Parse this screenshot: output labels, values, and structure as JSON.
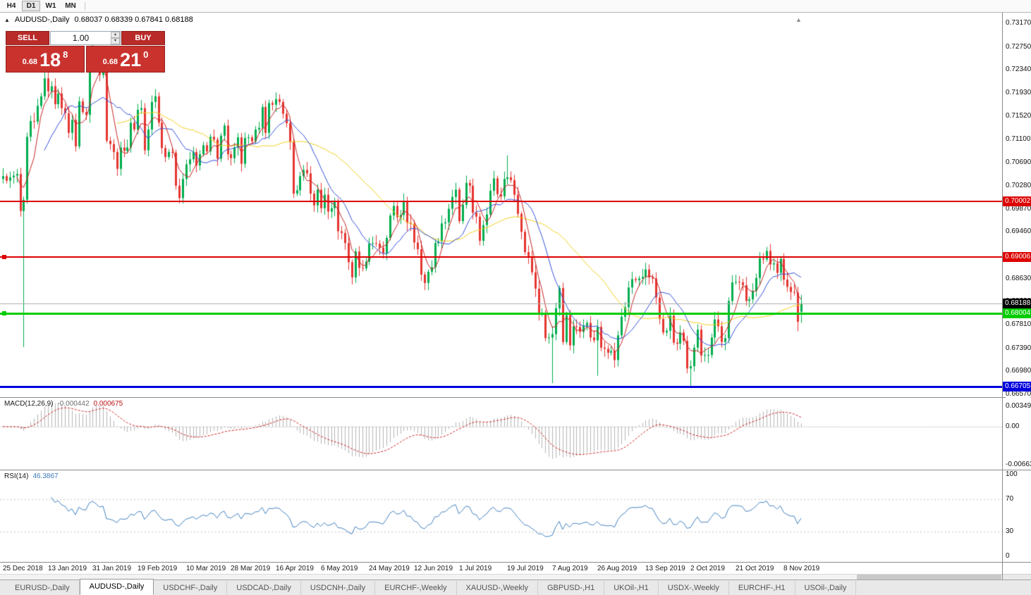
{
  "toolbar": {
    "timeframes": [
      {
        "label": "H4",
        "active": false
      },
      {
        "label": "D1",
        "active": true
      },
      {
        "label": "W1",
        "active": false
      },
      {
        "label": "MN",
        "active": false
      }
    ]
  },
  "chart": {
    "title_symbol": "AUDUSD-,Daily",
    "title_ohlc": "0.68037 0.68339 0.67841 0.68188"
  },
  "trade_panel": {
    "sell_label": "SELL",
    "buy_label": "BUY",
    "volume": "1.00",
    "sell_price": {
      "prefix": "0.68",
      "big": "18",
      "sup": "8"
    },
    "buy_price": {
      "prefix": "0.68",
      "big": "21",
      "sup": "0"
    }
  },
  "chart_data": {
    "type": "candlestick",
    "symbol": "AUDUSD-",
    "timeframe": "Daily",
    "price_max_visible": 0.7317,
    "price_min_visible": 0.6657,
    "y_ticks": [
      "0.73170",
      "0.72750",
      "0.72340",
      "0.71930",
      "0.71520",
      "0.71100",
      "0.70690",
      "0.70280",
      "0.69870",
      "0.69460",
      "0.69040",
      "0.68630",
      "0.68220",
      "0.67810",
      "0.67390",
      "0.66980",
      "0.66570"
    ],
    "x_labels": [
      {
        "label": "25 Dec 2018",
        "bar": 0
      },
      {
        "label": "13 Jan 2019",
        "bar": 13
      },
      {
        "label": "31 Jan 2019",
        "bar": 26
      },
      {
        "label": "19 Feb 2019",
        "bar": 39
      },
      {
        "label": "10 Mar 2019",
        "bar": 53
      },
      {
        "label": "28 Mar 2019",
        "bar": 66
      },
      {
        "label": "16 Apr 2019",
        "bar": 79
      },
      {
        "label": "6 May 2019",
        "bar": 92
      },
      {
        "label": "24 May 2019",
        "bar": 106
      },
      {
        "label": "12 Jun 2019",
        "bar": 119
      },
      {
        "label": "1 Jul 2019",
        "bar": 132
      },
      {
        "label": "19 Jul 2019",
        "bar": 146
      },
      {
        "label": "7 Aug 2019",
        "bar": 159
      },
      {
        "label": "26 Aug 2019",
        "bar": 172
      },
      {
        "label": "13 Sep 2019",
        "bar": 186
      },
      {
        "label": "2 Oct 2019",
        "bar": 199
      },
      {
        "label": "21 Oct 2019",
        "bar": 212
      },
      {
        "label": "8 Nov 2019",
        "bar": 226
      }
    ],
    "levels": [
      {
        "price": 0.70002,
        "label": "0.70002",
        "color": "#dd0000",
        "thickness": 2,
        "handle": false
      },
      {
        "price": 0.69006,
        "label": "0.69006",
        "color": "#dd0000",
        "thickness": 2,
        "handle": true
      },
      {
        "price": 0.68004,
        "label": "0.68004",
        "color": "#00cc00",
        "thickness": 3,
        "handle": true
      },
      {
        "price": 0.66705,
        "label": "0.66705",
        "color": "#0000dd",
        "thickness": 3,
        "handle": false
      }
    ],
    "bid_line": {
      "price": 0.68188,
      "label": "0.68188",
      "color": "#000000"
    },
    "first_open": 0.704,
    "closes": [
      0.7045,
      0.7037,
      0.7043,
      0.7046,
      0.7049,
      0.6983,
      0.7003,
      0.7115,
      0.7143,
      0.7142,
      0.717,
      0.7187,
      0.7219,
      0.7196,
      0.7205,
      0.7173,
      0.7192,
      0.7166,
      0.7157,
      0.7122,
      0.7145,
      0.7098,
      0.7178,
      0.7159,
      0.7154,
      0.7245,
      0.7271,
      0.7251,
      0.7225,
      0.7236,
      0.7108,
      0.7102,
      0.7088,
      0.7058,
      0.7096,
      0.709,
      0.7096,
      0.714,
      0.7128,
      0.7163,
      0.7166,
      0.7091,
      0.7128,
      0.7177,
      0.7187,
      0.714,
      0.7095,
      0.7079,
      0.7088,
      0.7087,
      0.7028,
      0.7006,
      0.704,
      0.7066,
      0.7075,
      0.7088,
      0.7064,
      0.7084,
      0.71,
      0.7089,
      0.7115,
      0.711,
      0.7076,
      0.7117,
      0.7135,
      0.7084,
      0.7077,
      0.7096,
      0.7114,
      0.7067,
      0.7113,
      0.7114,
      0.7107,
      0.7128,
      0.7131,
      0.7168,
      0.7122,
      0.7175,
      0.7172,
      0.7182,
      0.7177,
      0.7156,
      0.7139,
      0.7106,
      0.7014,
      0.702,
      0.7045,
      0.7056,
      0.705,
      0.7014,
      0.6993,
      0.7021,
      0.6988,
      0.7012,
      0.6982,
      0.6988,
      0.7001,
      0.6947,
      0.6944,
      0.6926,
      0.6892,
      0.6865,
      0.6911,
      0.6882,
      0.6881,
      0.6893,
      0.6925,
      0.6926,
      0.6925,
      0.6918,
      0.6908,
      0.6935,
      0.6975,
      0.6992,
      0.6972,
      0.6976,
      0.7,
      0.6962,
      0.696,
      0.6927,
      0.6915,
      0.687,
      0.6855,
      0.6875,
      0.6883,
      0.6926,
      0.6929,
      0.6961,
      0.6963,
      0.6987,
      0.7008,
      0.7021,
      0.6965,
      0.6994,
      0.7033,
      0.7028,
      0.698,
      0.6973,
      0.693,
      0.6958,
      0.6977,
      0.7019,
      0.7041,
      0.7013,
      0.7009,
      0.704,
      0.7043,
      0.7038,
      0.7012,
      0.6978,
      0.6946,
      0.691,
      0.6902,
      0.6874,
      0.6845,
      0.68,
      0.68,
      0.6757,
      0.6758,
      0.6764,
      0.681,
      0.6846,
      0.675,
      0.6798,
      0.6744,
      0.6778,
      0.6777,
      0.6768,
      0.6779,
      0.6784,
      0.6758,
      0.6753,
      0.6777,
      0.674,
      0.6738,
      0.6731,
      0.6734,
      0.6718,
      0.6762,
      0.6795,
      0.6812,
      0.6847,
      0.6862,
      0.686,
      0.6863,
      0.6866,
      0.6879,
      0.6865,
      0.6863,
      0.6829,
      0.6791,
      0.6767,
      0.677,
      0.6797,
      0.6749,
      0.6747,
      0.6767,
      0.6752,
      0.6703,
      0.6707,
      0.674,
      0.6772,
      0.6726,
      0.6727,
      0.6727,
      0.6758,
      0.679,
      0.6778,
      0.675,
      0.6757,
      0.6823,
      0.6856,
      0.6857,
      0.6856,
      0.6851,
      0.6823,
      0.6826,
      0.6841,
      0.6864,
      0.6899,
      0.6897,
      0.6912,
      0.6888,
      0.689,
      0.6873,
      0.6898,
      0.6861,
      0.6848,
      0.6839,
      0.6838,
      0.6786,
      0.68188
    ],
    "low_overrides": {
      "6": 0.6741,
      "159": 0.6677,
      "172": 0.669,
      "199": 0.667,
      "230": 0.6769
    },
    "high_overrides": {
      "26": 0.729,
      "146": 0.7082
    },
    "last_bar": {
      "open": 0.68037,
      "high": 0.68339,
      "low": 0.67841,
      "close": 0.68188
    },
    "moving_averages": [
      {
        "period": 34,
        "color": "#f0d01c"
      },
      {
        "period": 13,
        "color": "#3050d8"
      },
      {
        "period": 5,
        "color": "#c62323"
      }
    ],
    "candle_colors": {
      "up": "#00ad4e",
      "down": "#e43530"
    },
    "macd": {
      "label": "MACD(12,26,9)",
      "value_main": "-0.000442",
      "value_signal": "0.000675",
      "params": [
        12,
        26,
        9
      ],
      "axis_labels": [
        "0.00349",
        "0.00",
        "-0.00663"
      ],
      "axis_values": [
        0.00349,
        0,
        -0.00663
      ],
      "scale_max": 0.005,
      "scale_min": -0.0075,
      "histogram_color": "#b4b4b4",
      "signal_color": "#cc2222"
    },
    "rsi": {
      "label": "RSI(14)",
      "value": "46.3867",
      "params": [
        14
      ],
      "axis_labels": [
        "100",
        "70",
        "30",
        "0"
      ],
      "axis_values": [
        100,
        70,
        30,
        0
      ],
      "levels": [
        70,
        30
      ],
      "line_color": "#4080bf"
    }
  },
  "tabs": [
    {
      "label": "EURUSD-,Daily",
      "active": false
    },
    {
      "label": "AUDUSD-,Daily",
      "active": true
    },
    {
      "label": "USDCHF-,Daily",
      "active": false
    },
    {
      "label": "USDCAD-,Daily",
      "active": false
    },
    {
      "label": "USDCNH-,Daily",
      "active": false
    },
    {
      "label": "EURCHF-,Weekly",
      "active": false
    },
    {
      "label": "XAUUSD-,Weekly",
      "active": false
    },
    {
      "label": "GBPUSD-,H1",
      "active": false
    },
    {
      "label": "UKOil-,H1",
      "active": false
    },
    {
      "label": "USDX-,Weekly",
      "active": false
    },
    {
      "label": "EURCHF-,H1",
      "active": false
    },
    {
      "label": "USOil-,Daily",
      "active": false
    }
  ]
}
